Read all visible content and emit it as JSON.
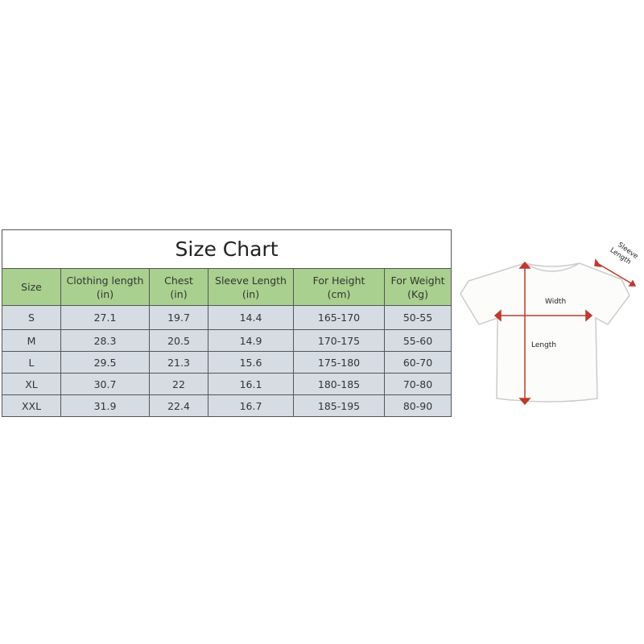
{
  "title": "Size Chart",
  "columns": [
    {
      "line1": "Size",
      "line2": ""
    },
    {
      "line1": "Clothing length",
      "line2": "(in)"
    },
    {
      "line1": "Chest",
      "line2": "(in)"
    },
    {
      "line1": "Sleeve Length",
      "line2": "(in)"
    },
    {
      "line1": "For Height",
      "line2": "(cm)"
    },
    {
      "line1": "For Weight",
      "line2": "(Kg)"
    }
  ],
  "rows": [
    [
      "S",
      "27.1",
      "19.7",
      "14.4",
      "165-170",
      "50-55"
    ],
    [
      "M",
      "28.3",
      "20.5",
      "14.9",
      "170-175",
      "55-60"
    ],
    [
      "L",
      "29.5",
      "21.3",
      "15.6",
      "175-180",
      "60-70"
    ],
    [
      "XL",
      "30.7",
      "22",
      "16.1",
      "180-185",
      "70-80"
    ],
    [
      "XXL",
      "31.9",
      "22.4",
      "16.7",
      "185-195",
      "80-90"
    ]
  ],
  "diagram": {
    "width": "Width",
    "length": "Length",
    "sleeve1": "Sleeve",
    "sleeve2": "Length"
  },
  "colors": {
    "header": "#a9d08e",
    "rows": "#d6dce4",
    "arrows": "#c0392b"
  }
}
